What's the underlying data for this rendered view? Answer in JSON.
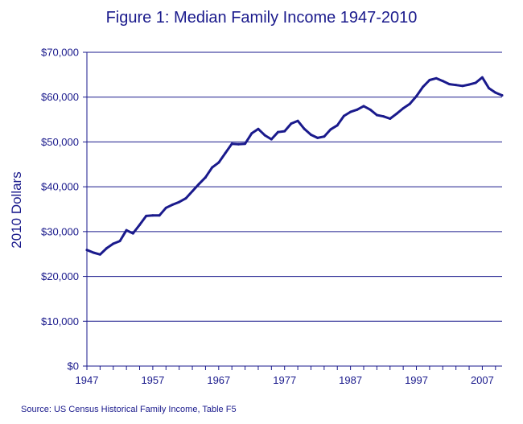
{
  "chart_data": {
    "type": "line",
    "title": "Figure 1: Median Family Income 1947-2010",
    "xlabel": "",
    "ylabel": "2010 Dollars",
    "source": "Source: US Census Historical Family Income, Table F5",
    "xlim": [
      1947,
      2010
    ],
    "ylim": [
      0,
      70000
    ],
    "grid": true,
    "legend": "none",
    "x_ticks": [
      {
        "value": 1947,
        "label": "1947"
      },
      {
        "value": 1957,
        "label": "1957"
      },
      {
        "value": 1967,
        "label": "1967"
      },
      {
        "value": 1977,
        "label": "1977"
      },
      {
        "value": 1987,
        "label": "1987"
      },
      {
        "value": 1997,
        "label": "1997"
      },
      {
        "value": 2007,
        "label": "2007"
      }
    ],
    "y_ticks": [
      {
        "value": 0,
        "label": "$0"
      },
      {
        "value": 10000,
        "label": "$10,000"
      },
      {
        "value": 20000,
        "label": "$20,000"
      },
      {
        "value": 30000,
        "label": "$30,000"
      },
      {
        "value": 40000,
        "label": "$40,000"
      },
      {
        "value": 50000,
        "label": "$50,000"
      },
      {
        "value": 60000,
        "label": "$60,000"
      },
      {
        "value": 70000,
        "label": "$70,000"
      }
    ],
    "colors": {
      "line": "#1a1a8c",
      "grid": "#1a1a8c",
      "text": "#1a1a8c",
      "background": "#ffffff"
    },
    "series": [
      {
        "x": [
          1947,
          1948,
          1949,
          1950,
          1951,
          1952,
          1953,
          1954,
          1955,
          1956,
          1957,
          1958,
          1959,
          1960,
          1961,
          1962,
          1963,
          1964,
          1965,
          1966,
          1967,
          1968,
          1969,
          1970,
          1971,
          1972,
          1973,
          1974,
          1975,
          1976,
          1977,
          1978,
          1979,
          1980,
          1981,
          1982,
          1983,
          1984,
          1985,
          1986,
          1987,
          1988,
          1989,
          1990,
          1991,
          1992,
          1993,
          1994,
          1995,
          1996,
          1997,
          1998,
          1999,
          2000,
          2001,
          2002,
          2003,
          2004,
          2005,
          2006,
          2007,
          2008,
          2009,
          2010
        ],
        "values": [
          25900,
          25300,
          24900,
          26300,
          27300,
          27900,
          30300,
          29600,
          31500,
          33500,
          33600,
          33600,
          35300,
          36000,
          36600,
          37400,
          39000,
          40600,
          42100,
          44300,
          45400,
          47500,
          49600,
          49500,
          49600,
          51900,
          52900,
          51500,
          50600,
          52200,
          52400,
          54100,
          54700,
          52900,
          51600,
          50900,
          51200,
          52800,
          53700,
          55800,
          56700,
          57200,
          58000,
          57200,
          56000,
          55700,
          55200,
          56300,
          57500,
          58500,
          60200,
          62300,
          63800,
          64200,
          63600,
          62900,
          62700,
          62500,
          62800,
          63200,
          64400,
          62000,
          61000,
          60400
        ]
      }
    ]
  }
}
